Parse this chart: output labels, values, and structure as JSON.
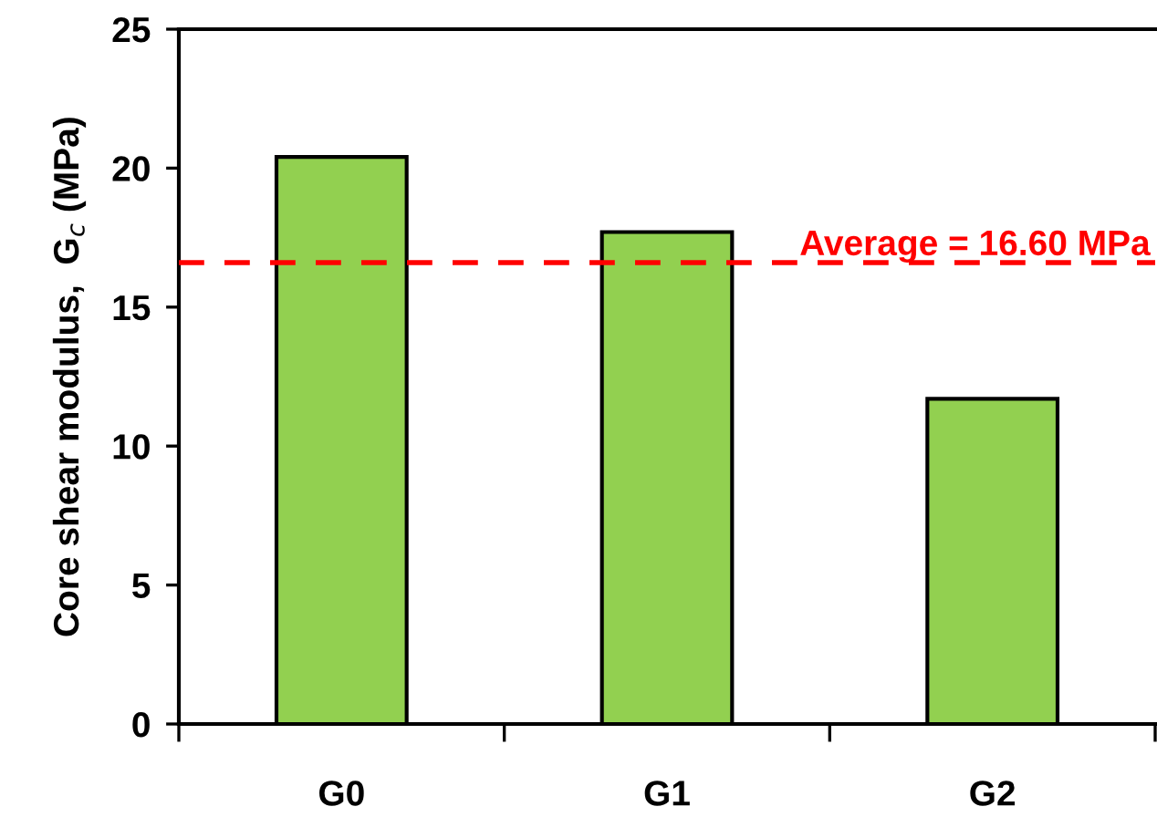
{
  "chart_data": {
    "type": "bar",
    "ylabel": "Core shear modulus,  G$_{c}$ (MPa)",
    "categories": [
      "G0",
      "G1",
      "G2"
    ],
    "values": [
      20.4,
      17.7,
      11.7
    ],
    "color": "#92d050",
    "ylim": [
      0,
      25
    ],
    "yticks": [
      0,
      5,
      10,
      15,
      20,
      25
    ],
    "ref_lines": [
      {
        "axis": "y",
        "value": 16.6,
        "label": "Average = 16.60 MPa",
        "color": "#ff0000",
        "line_style": "dashed"
      }
    ]
  }
}
